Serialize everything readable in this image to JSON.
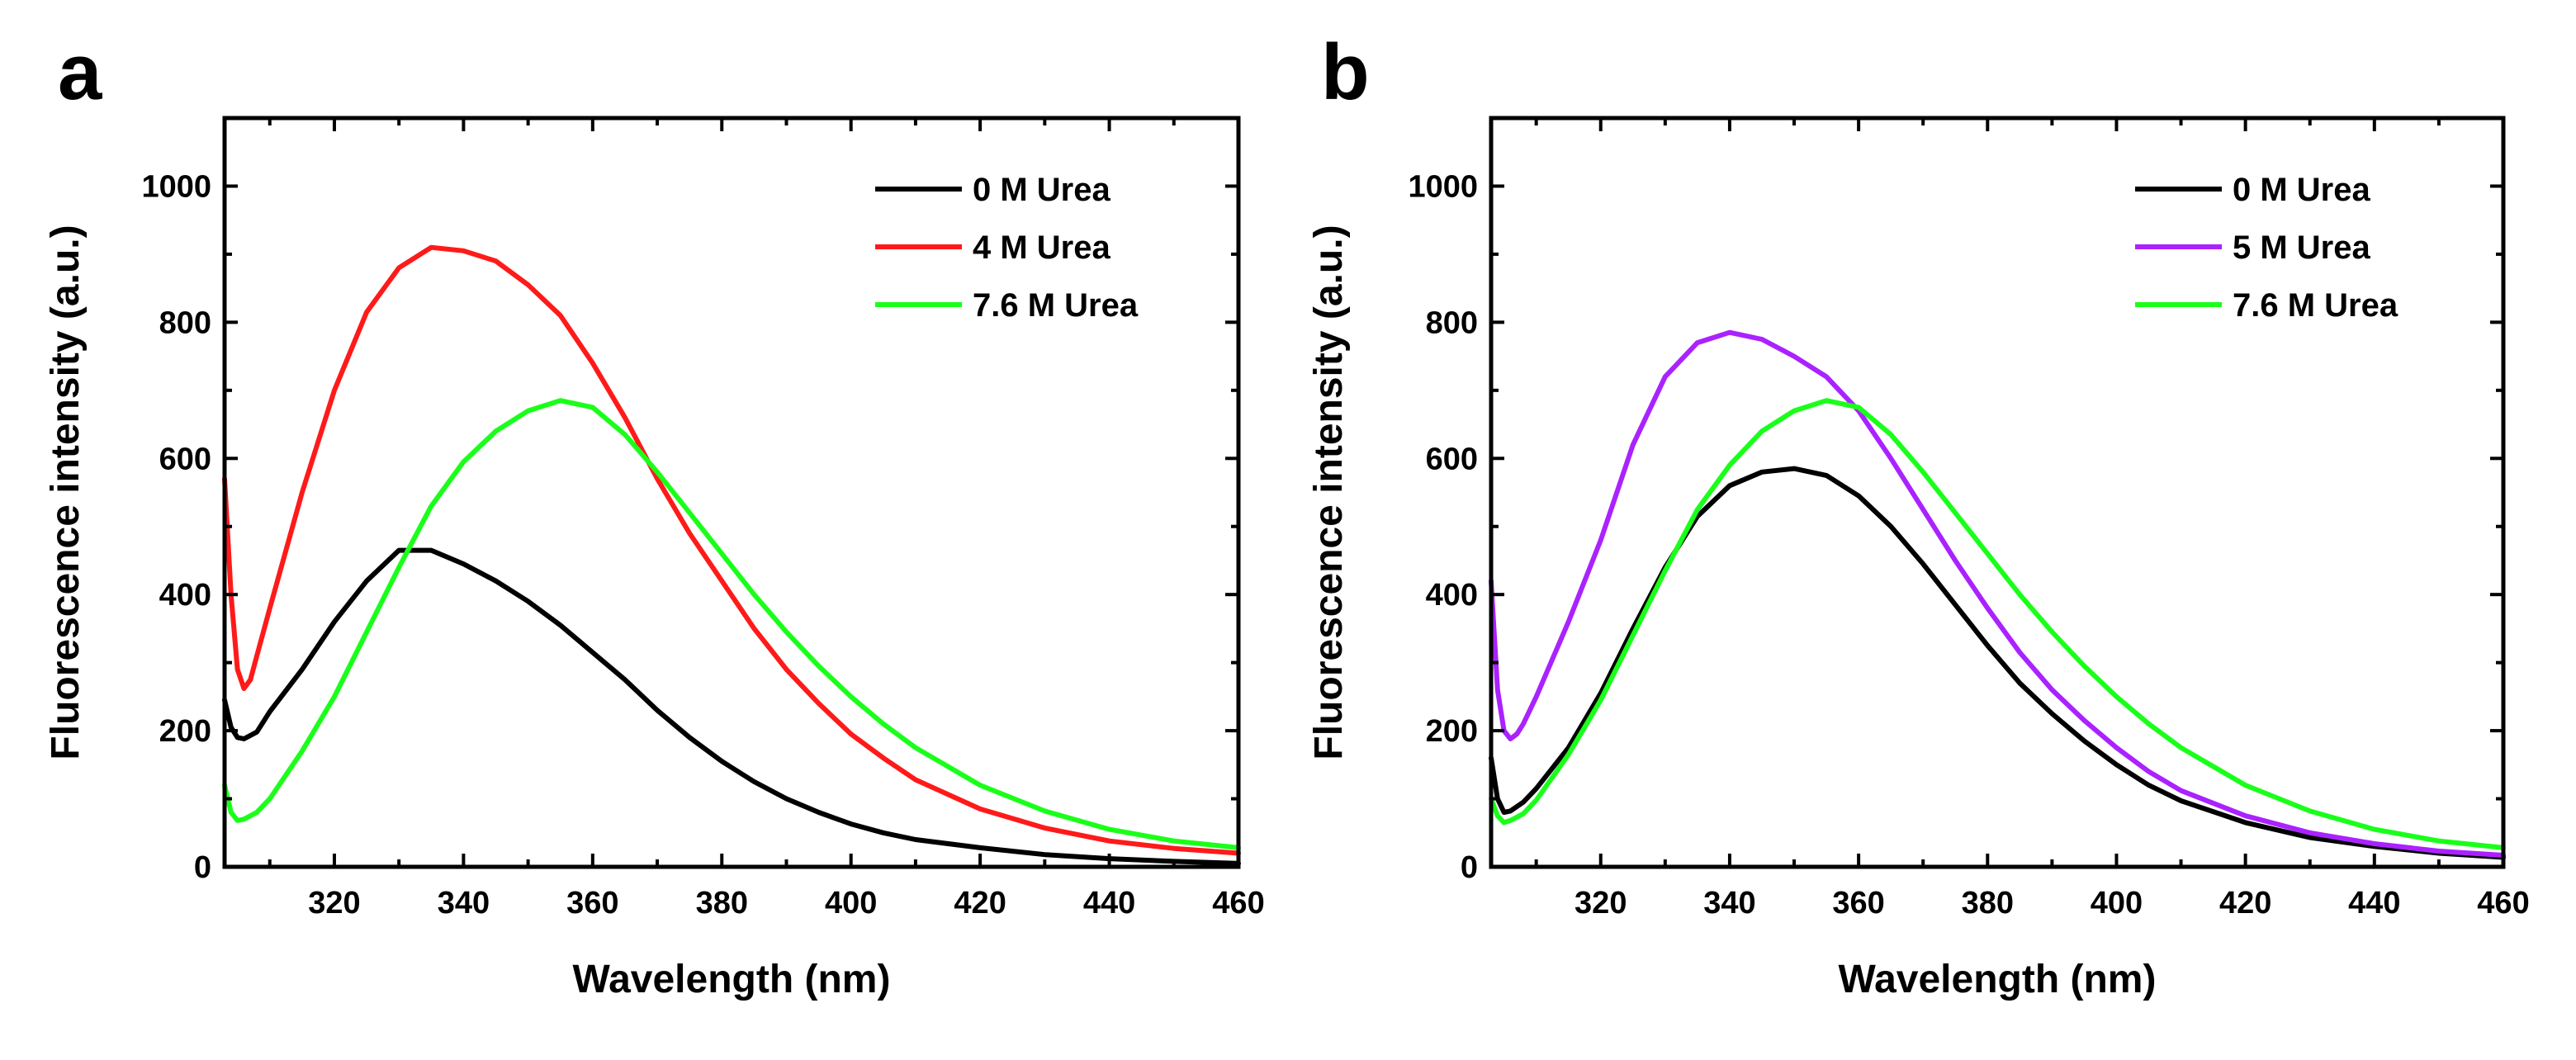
{
  "colors": {
    "black": "#000000",
    "red": "#ff1a1a",
    "green": "#1aff1a",
    "purple": "#aa22ff"
  },
  "chart_data": [
    {
      "panel": "a",
      "type": "line",
      "title": "",
      "xlabel": "Wavelength (nm)",
      "ylabel": "Fluorescence intensity (a.u.)",
      "xlim": [
        303,
        460
      ],
      "ylim": [
        0,
        1100
      ],
      "xticks": [
        320,
        340,
        360,
        380,
        400,
        420,
        440,
        460
      ],
      "yticks": [
        0,
        200,
        400,
        600,
        800,
        1000
      ],
      "legend_position": "top-right",
      "series": [
        {
          "name": "0 M Urea",
          "color": "#000000",
          "x": [
            303,
            304,
            305,
            306,
            308,
            310,
            315,
            320,
            325,
            330,
            335,
            340,
            345,
            350,
            355,
            360,
            365,
            370,
            375,
            380,
            385,
            390,
            395,
            400,
            405,
            410,
            420,
            430,
            440,
            450,
            460
          ],
          "y": [
            245,
            205,
            190,
            188,
            198,
            228,
            290,
            360,
            420,
            465,
            465,
            445,
            420,
            390,
            355,
            315,
            275,
            230,
            190,
            155,
            125,
            100,
            80,
            63,
            50,
            40,
            28,
            18,
            12,
            8,
            5
          ]
        },
        {
          "name": "4 M Urea",
          "color": "#ff1a1a",
          "x": [
            303,
            304,
            305,
            306,
            307,
            308,
            310,
            315,
            320,
            325,
            330,
            335,
            340,
            345,
            350,
            355,
            360,
            365,
            370,
            375,
            380,
            385,
            390,
            395,
            400,
            405,
            410,
            420,
            430,
            440,
            450,
            460
          ],
          "y": [
            570,
            400,
            290,
            262,
            275,
            310,
            380,
            550,
            700,
            815,
            880,
            910,
            905,
            890,
            855,
            810,
            740,
            660,
            570,
            490,
            420,
            350,
            290,
            240,
            195,
            160,
            128,
            85,
            57,
            38,
            27,
            20
          ]
        },
        {
          "name": "7.6 M Urea",
          "color": "#1aff1a",
          "x": [
            303,
            304,
            305,
            306,
            308,
            310,
            315,
            320,
            325,
            330,
            335,
            340,
            345,
            350,
            355,
            360,
            365,
            370,
            375,
            380,
            385,
            390,
            395,
            400,
            405,
            410,
            420,
            430,
            440,
            450,
            460
          ],
          "y": [
            120,
            80,
            68,
            70,
            80,
            100,
            170,
            250,
            345,
            440,
            530,
            595,
            640,
            670,
            685,
            675,
            635,
            580,
            520,
            460,
            400,
            345,
            295,
            250,
            210,
            175,
            120,
            82,
            55,
            38,
            28
          ]
        }
      ]
    },
    {
      "panel": "b",
      "type": "line",
      "title": "",
      "xlabel": "Wavelength (nm)",
      "ylabel": "Fluorescence intensity (a.u.)",
      "xlim": [
        303,
        460
      ],
      "ylim": [
        0,
        1100
      ],
      "xticks": [
        320,
        340,
        360,
        380,
        400,
        420,
        440,
        460
      ],
      "yticks": [
        0,
        200,
        400,
        600,
        800,
        1000
      ],
      "legend_position": "top-right",
      "series": [
        {
          "name": "0 M Urea",
          "color": "#000000",
          "x": [
            303,
            304,
            305,
            306,
            308,
            310,
            315,
            320,
            325,
            330,
            335,
            340,
            345,
            350,
            355,
            360,
            365,
            370,
            375,
            380,
            385,
            390,
            395,
            400,
            405,
            410,
            420,
            430,
            440,
            450,
            460
          ],
          "y": [
            160,
            100,
            80,
            82,
            95,
            115,
            175,
            255,
            350,
            440,
            515,
            560,
            580,
            585,
            575,
            545,
            500,
            445,
            385,
            325,
            270,
            225,
            185,
            150,
            120,
            97,
            65,
            43,
            30,
            20,
            14
          ]
        },
        {
          "name": "5 M Urea",
          "color": "#aa22ff",
          "x": [
            303,
            304,
            305,
            306,
            307,
            308,
            310,
            315,
            320,
            325,
            330,
            335,
            340,
            345,
            350,
            355,
            360,
            365,
            370,
            375,
            380,
            385,
            390,
            395,
            400,
            405,
            410,
            420,
            430,
            440,
            450,
            460
          ],
          "y": [
            420,
            260,
            200,
            188,
            195,
            210,
            250,
            360,
            480,
            620,
            720,
            770,
            785,
            775,
            750,
            720,
            670,
            600,
            525,
            450,
            380,
            315,
            260,
            215,
            175,
            140,
            112,
            75,
            50,
            34,
            23,
            17
          ]
        },
        {
          "name": "7.6 M Urea",
          "color": "#1aff1a",
          "x": [
            303,
            304,
            305,
            306,
            308,
            310,
            315,
            320,
            325,
            330,
            335,
            340,
            345,
            350,
            355,
            360,
            365,
            370,
            375,
            380,
            385,
            390,
            395,
            400,
            405,
            410,
            420,
            430,
            440,
            450,
            460
          ],
          "y": [
            100,
            75,
            65,
            68,
            78,
            98,
            165,
            245,
            340,
            435,
            525,
            590,
            640,
            670,
            685,
            675,
            635,
            580,
            520,
            460,
            400,
            345,
            295,
            250,
            210,
            175,
            120,
            82,
            55,
            38,
            28
          ]
        }
      ]
    }
  ]
}
